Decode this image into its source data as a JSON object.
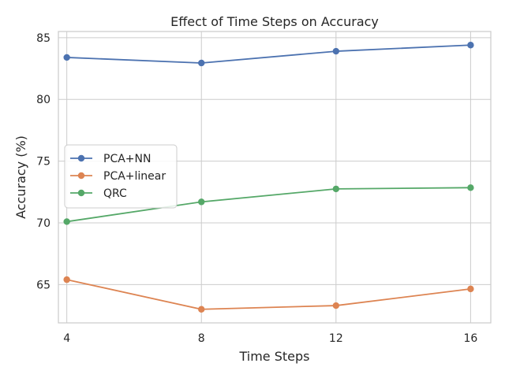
{
  "chart_data": {
    "type": "line",
    "title": "Effect of Time Steps on Accuracy",
    "xlabel": "Time Steps",
    "ylabel": "Accuracy (%)",
    "x": [
      4,
      8,
      12,
      16
    ],
    "xticks": [
      "4",
      "8",
      "12",
      "16"
    ],
    "yticks": [
      65,
      70,
      75,
      80,
      85
    ],
    "ytick_labels": [
      "65",
      "70",
      "75",
      "80",
      "85"
    ],
    "xlim": [
      3.75,
      16.6
    ],
    "ylim": [
      61.9,
      85.5
    ],
    "grid": true,
    "legend_position": "center-left",
    "series": [
      {
        "name": "PCA+NN",
        "color": "#4c72b0",
        "values": [
          83.4,
          82.95,
          83.9,
          84.4
        ]
      },
      {
        "name": "PCA+linear",
        "color": "#dd8452",
        "values": [
          65.4,
          63.0,
          63.3,
          64.65
        ]
      },
      {
        "name": "QRC",
        "color": "#55a868",
        "values": [
          70.1,
          71.7,
          72.75,
          72.85
        ]
      }
    ]
  }
}
